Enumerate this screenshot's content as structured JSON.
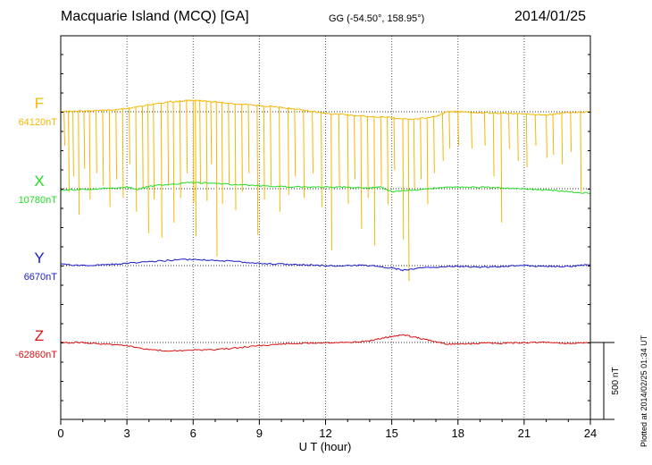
{
  "header": {
    "station": "Macquarie Island (MCQ)  [GA]",
    "coords": "GG (-54.50°, 158.95°)",
    "date": "2014/01/25"
  },
  "footer": {
    "plotted": "Plotted at 2014/02/25 01:34 UT"
  },
  "chart_data": {
    "type": "line",
    "xlabel": "U T (hour)",
    "xlim": [
      0,
      24
    ],
    "xticks": [
      "0",
      "3",
      "6",
      "9",
      "12",
      "15",
      "18",
      "21",
      "24"
    ],
    "grid": true,
    "scale_bar": {
      "label": "500 nT",
      "value_nT": 500
    },
    "colors": {
      "F": "#f5b700",
      "X": "#22dd22",
      "Y": "#1a1acc",
      "Z": "#dd1111"
    },
    "series": [
      {
        "name": "F",
        "baseline_label": "64120nT",
        "baseline": 64120,
        "color": "#f5b700",
        "x": [
          0,
          1,
          2,
          3,
          4,
          5,
          5.5,
          6,
          6.5,
          7,
          8,
          9,
          10,
          11,
          12,
          13,
          14,
          15,
          16,
          17,
          17.5,
          18,
          19,
          20,
          21,
          22,
          23,
          24
        ],
        "values": [
          64120,
          64125,
          64130,
          64140,
          64165,
          64185,
          64190,
          64195,
          64190,
          64185,
          64170,
          64160,
          64150,
          64130,
          64110,
          64100,
          64090,
          64080,
          64070,
          64090,
          64120,
          64120,
          64115,
          64110,
          64105,
          64100,
          64115,
          64120
        ],
        "spikes": [
          [
            0.15,
            63900
          ],
          [
            0.35,
            63600
          ],
          [
            0.55,
            63700
          ],
          [
            0.8,
            63450
          ],
          [
            1.05,
            63750
          ],
          [
            1.3,
            63550
          ],
          [
            1.6,
            63720
          ],
          [
            1.9,
            63640
          ],
          [
            2.2,
            63500
          ],
          [
            2.5,
            63680
          ],
          [
            2.8,
            63560
          ],
          [
            3.1,
            63780
          ],
          [
            3.4,
            63470
          ],
          [
            3.7,
            63620
          ],
          [
            3.95,
            63330
          ],
          [
            4.2,
            63550
          ],
          [
            4.55,
            63300
          ],
          [
            4.85,
            63640
          ],
          [
            5.1,
            63400
          ],
          [
            5.4,
            63560
          ],
          [
            5.7,
            63720
          ],
          [
            6.0,
            63530
          ],
          [
            6.1,
            63310
          ],
          [
            6.3,
            63650
          ],
          [
            6.6,
            63540
          ],
          [
            6.8,
            63780
          ],
          [
            7.05,
            63180
          ],
          [
            7.3,
            63520
          ],
          [
            7.6,
            63650
          ],
          [
            7.9,
            63480
          ],
          [
            8.2,
            63600
          ],
          [
            8.5,
            63720
          ],
          [
            8.9,
            63320
          ],
          [
            9.2,
            63550
          ],
          [
            9.5,
            63640
          ],
          [
            9.9,
            63470
          ],
          [
            10.3,
            63580
          ],
          [
            10.6,
            63700
          ],
          [
            11.0,
            63560
          ],
          [
            11.4,
            63720
          ],
          [
            11.8,
            63500
          ],
          [
            12.25,
            63220
          ],
          [
            12.6,
            63640
          ],
          [
            13.0,
            63520
          ],
          [
            13.3,
            63680
          ],
          [
            13.6,
            63360
          ],
          [
            13.9,
            63560
          ],
          [
            14.2,
            63250
          ],
          [
            14.5,
            63640
          ],
          [
            14.8,
            63520
          ],
          [
            15.1,
            63740
          ],
          [
            15.5,
            63290
          ],
          [
            15.75,
            63020
          ],
          [
            16.0,
            63620
          ],
          [
            16.3,
            63680
          ],
          [
            16.6,
            63520
          ],
          [
            16.9,
            63720
          ],
          [
            17.3,
            63800
          ],
          [
            17.6,
            63880
          ],
          [
            18.0,
            63900
          ],
          [
            18.6,
            63880
          ],
          [
            19.2,
            63900
          ],
          [
            19.6,
            63700
          ],
          [
            19.95,
            63400
          ],
          [
            20.3,
            63880
          ],
          [
            20.7,
            63800
          ],
          [
            21.1,
            63760
          ],
          [
            21.5,
            63900
          ],
          [
            22.0,
            63820
          ],
          [
            22.3,
            63840
          ],
          [
            22.7,
            63780
          ],
          [
            23.1,
            63860
          ],
          [
            23.55,
            63600
          ]
        ]
      },
      {
        "name": "X",
        "baseline_label": "10780nT",
        "baseline": 10780,
        "color": "#22dd22",
        "x": [
          0,
          1,
          2,
          3,
          3.5,
          4,
          5,
          6,
          7,
          8,
          9,
          10,
          11,
          12,
          13,
          14,
          14.5,
          15,
          16,
          17,
          18,
          19,
          20,
          21,
          22,
          23,
          24
        ],
        "values": [
          10770,
          10775,
          10780,
          10790,
          10775,
          10795,
          10810,
          10820,
          10815,
          10805,
          10800,
          10795,
          10790,
          10790,
          10790,
          10785,
          10790,
          10760,
          10770,
          10785,
          10790,
          10790,
          10785,
          10780,
          10770,
          10760,
          10750
        ]
      },
      {
        "name": "Y",
        "baseline_label": "6670nT",
        "baseline": 6670,
        "color": "#1a1acc",
        "x": [
          0,
          1,
          2,
          3,
          4,
          5,
          6,
          7,
          8,
          9,
          10,
          11,
          12,
          13,
          14,
          15,
          15.5,
          16,
          17,
          18,
          19,
          20,
          21,
          22,
          23,
          24
        ],
        "values": [
          6680,
          6670,
          6675,
          6685,
          6695,
          6705,
          6710,
          6705,
          6695,
          6685,
          6680,
          6675,
          6670,
          6670,
          6670,
          6655,
          6640,
          6650,
          6660,
          6665,
          6660,
          6665,
          6670,
          6665,
          6665,
          6675
        ]
      },
      {
        "name": "Z",
        "baseline_label": "-62860nT",
        "baseline": -62860,
        "color": "#dd1111",
        "x": [
          0,
          1,
          2,
          3,
          4,
          5,
          6,
          7,
          8,
          9,
          10,
          11,
          12,
          13,
          14,
          14.5,
          15,
          15.5,
          16,
          16.5,
          17,
          17.5,
          18,
          19,
          20,
          21,
          22,
          23,
          24
        ],
        "values": [
          -62860,
          -62860,
          -62870,
          -62880,
          -62905,
          -62915,
          -62910,
          -62905,
          -62895,
          -62880,
          -62870,
          -62865,
          -62860,
          -62860,
          -62850,
          -62835,
          -62820,
          -62810,
          -62825,
          -62840,
          -62855,
          -62870,
          -62870,
          -62865,
          -62865,
          -62860,
          -62860,
          -62865,
          -62865
        ]
      }
    ]
  }
}
